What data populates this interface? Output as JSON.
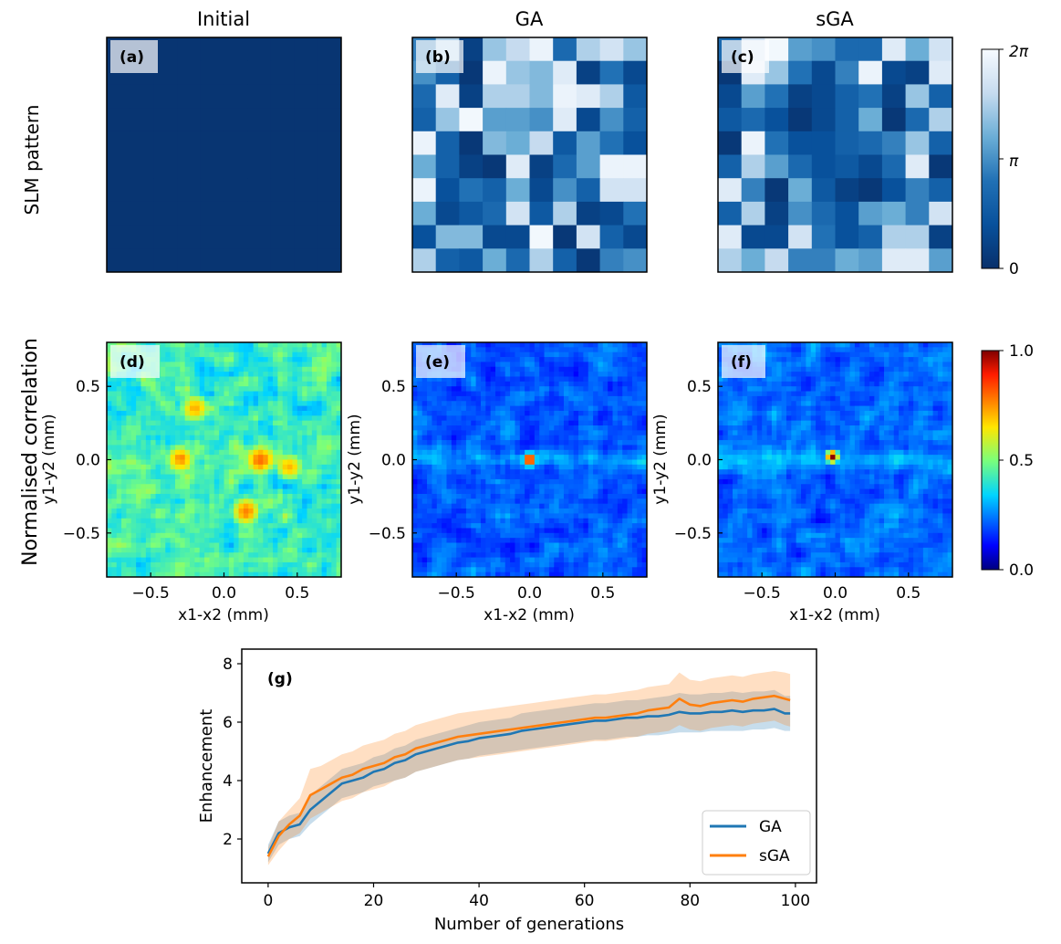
{
  "column_titles": [
    "Initial",
    "GA",
    "sGA"
  ],
  "row_labels": {
    "slm": "SLM pattern",
    "correlation": "Normalised correlation"
  },
  "panel_labels": {
    "a": "(a)",
    "b": "(b)",
    "c": "(c)",
    "d": "(d)",
    "e": "(e)",
    "f": "(f)",
    "g": "(g)"
  },
  "phase_colorbar": {
    "cmap": "Blues_r",
    "ticks": [
      "0",
      "π",
      "2π"
    ],
    "values": [
      0,
      3.1416,
      6.2832
    ]
  },
  "correlation_colorbar": {
    "cmap": "jet",
    "ticks": [
      "0.0",
      "0.5",
      "1.0"
    ],
    "values": [
      0.0,
      0.5,
      1.0
    ]
  },
  "chart_data": [
    {
      "panel": "a",
      "type": "heatmap",
      "title": "Initial",
      "grid_size": [
        10,
        10
      ],
      "value_units": "phase (fraction of 2π)",
      "values": [
        [
          0.03,
          0.03,
          0.03,
          0.03,
          0.03,
          0.03,
          0.03,
          0.03,
          0.03,
          0.03
        ],
        [
          0.03,
          0.03,
          0.03,
          0.03,
          0.03,
          0.03,
          0.03,
          0.03,
          0.03,
          0.03
        ],
        [
          0.03,
          0.03,
          0.03,
          0.03,
          0.03,
          0.03,
          0.03,
          0.03,
          0.03,
          0.03
        ],
        [
          0.03,
          0.03,
          0.03,
          0.03,
          0.03,
          0.03,
          0.03,
          0.03,
          0.03,
          0.03
        ],
        [
          0.03,
          0.03,
          0.03,
          0.03,
          0.03,
          0.03,
          0.03,
          0.03,
          0.03,
          0.03
        ],
        [
          0.03,
          0.03,
          0.03,
          0.03,
          0.03,
          0.03,
          0.03,
          0.03,
          0.03,
          0.03
        ],
        [
          0.03,
          0.03,
          0.03,
          0.03,
          0.03,
          0.03,
          0.03,
          0.03,
          0.03,
          0.03
        ],
        [
          0.03,
          0.03,
          0.03,
          0.03,
          0.03,
          0.03,
          0.03,
          0.03,
          0.03,
          0.03
        ],
        [
          0.03,
          0.03,
          0.03,
          0.03,
          0.03,
          0.03,
          0.03,
          0.03,
          0.03,
          0.03
        ],
        [
          0.03,
          0.03,
          0.03,
          0.03,
          0.03,
          0.03,
          0.03,
          0.03,
          0.03,
          0.03
        ]
      ]
    },
    {
      "panel": "b",
      "type": "heatmap",
      "title": "GA",
      "grid_size": [
        10,
        10
      ],
      "value_units": "phase (fraction of 2π)",
      "values": [
        [
          0.45,
          0.75,
          0.1,
          0.7,
          0.8,
          0.95,
          0.35,
          0.75,
          0.85,
          0.7
        ],
        [
          0.5,
          0.3,
          0.05,
          0.95,
          0.7,
          0.65,
          0.9,
          0.1,
          0.4,
          0.15
        ],
        [
          0.35,
          0.9,
          0.1,
          0.75,
          0.75,
          0.65,
          0.95,
          0.9,
          0.75,
          0.25
        ],
        [
          0.3,
          0.7,
          0.98,
          0.55,
          0.55,
          0.5,
          0.9,
          0.15,
          0.5,
          0.3
        ],
        [
          0.95,
          0.3,
          0.05,
          0.65,
          0.6,
          0.8,
          0.25,
          0.55,
          0.4,
          0.2
        ],
        [
          0.6,
          0.3,
          0.1,
          0.05,
          0.9,
          0.1,
          0.35,
          0.55,
          0.95,
          0.95
        ],
        [
          0.95,
          0.2,
          0.4,
          0.3,
          0.6,
          0.15,
          0.5,
          0.3,
          0.85,
          0.85
        ],
        [
          0.6,
          0.15,
          0.25,
          0.35,
          0.85,
          0.25,
          0.75,
          0.1,
          0.15,
          0.4
        ],
        [
          0.2,
          0.65,
          0.65,
          0.15,
          0.15,
          0.98,
          0.05,
          0.85,
          0.3,
          0.15
        ],
        [
          0.75,
          0.3,
          0.25,
          0.6,
          0.35,
          0.75,
          0.3,
          0.05,
          0.45,
          0.5
        ]
      ]
    },
    {
      "panel": "c",
      "type": "heatmap",
      "title": "sGA",
      "grid_size": [
        10,
        10
      ],
      "value_units": "phase (fraction of 2π)",
      "values": [
        [
          0.35,
          0.85,
          0.98,
          0.55,
          0.5,
          0.35,
          0.35,
          0.9,
          0.6,
          0.85
        ],
        [
          0.05,
          0.9,
          0.7,
          0.4,
          0.15,
          0.45,
          0.95,
          0.15,
          0.1,
          0.9
        ],
        [
          0.15,
          0.55,
          0.4,
          0.1,
          0.15,
          0.3,
          0.4,
          0.1,
          0.7,
          0.3
        ],
        [
          0.25,
          0.35,
          0.2,
          0.05,
          0.15,
          0.3,
          0.6,
          0.05,
          0.35,
          0.75
        ],
        [
          0.05,
          0.95,
          0.4,
          0.2,
          0.2,
          0.3,
          0.35,
          0.45,
          0.7,
          0.3
        ],
        [
          0.3,
          0.75,
          0.55,
          0.35,
          0.2,
          0.25,
          0.15,
          0.35,
          0.9,
          0.05
        ],
        [
          0.9,
          0.45,
          0.05,
          0.6,
          0.25,
          0.1,
          0.05,
          0.2,
          0.45,
          0.3
        ],
        [
          0.3,
          0.75,
          0.1,
          0.5,
          0.35,
          0.2,
          0.55,
          0.6,
          0.45,
          0.85
        ],
        [
          0.9,
          0.15,
          0.15,
          0.85,
          0.4,
          0.2,
          0.3,
          0.75,
          0.75,
          0.1
        ],
        [
          0.75,
          0.6,
          0.8,
          0.45,
          0.45,
          0.6,
          0.55,
          0.9,
          0.9,
          0.55
        ]
      ]
    },
    {
      "panel": "d",
      "type": "heatmap",
      "title": "",
      "xlabel": "x1-x2 (mm)",
      "ylabel": "y1-y2 (mm)",
      "xlim": [
        -0.8,
        0.8
      ],
      "ylim": [
        -0.8,
        0.8
      ],
      "xticks": [
        -0.5,
        0.0,
        0.5
      ],
      "yticks": [
        -0.5,
        0.0,
        0.5
      ],
      "xtick_labels": [
        "−0.5",
        "0.0",
        "0.5"
      ],
      "ytick_labels": [
        "−0.5",
        "0.0",
        "0.5"
      ],
      "background_level": 0.42,
      "noise_amplitude": 0.14,
      "peaks": [
        {
          "x": -0.2,
          "y": 0.35,
          "value": 0.72
        },
        {
          "x": -0.3,
          "y": 0.0,
          "value": 0.74
        },
        {
          "x": 0.25,
          "y": 0.0,
          "value": 0.8
        },
        {
          "x": 0.15,
          "y": -0.35,
          "value": 0.76
        },
        {
          "x": 0.45,
          "y": -0.05,
          "value": 0.7
        }
      ]
    },
    {
      "panel": "e",
      "type": "heatmap",
      "title": "",
      "xlabel": "x1-x2 (mm)",
      "ylabel": "y1-y2 (mm)",
      "xlim": [
        -0.8,
        0.8
      ],
      "ylim": [
        -0.8,
        0.8
      ],
      "xticks": [
        -0.5,
        0.0,
        0.5
      ],
      "yticks": [
        -0.5,
        0.0,
        0.5
      ],
      "xtick_labels": [
        "−0.5",
        "0.0",
        "0.5"
      ],
      "ytick_labels": [
        "−0.5",
        "0.0",
        "0.5"
      ],
      "background_level": 0.2,
      "noise_amplitude": 0.1,
      "peaks": [
        {
          "x": 0.0,
          "y": 0.0,
          "value": 1.0
        }
      ]
    },
    {
      "panel": "f",
      "type": "heatmap",
      "title": "",
      "xlabel": "x1-x2 (mm)",
      "ylabel": "y1-y2 (mm)",
      "xlim": [
        -0.8,
        0.8
      ],
      "ylim": [
        -0.8,
        0.8
      ],
      "xticks": [
        -0.5,
        0.0,
        0.5
      ],
      "yticks": [
        -0.5,
        0.0,
        0.5
      ],
      "xtick_labels": [
        "−0.5",
        "0.0",
        "0.5"
      ],
      "ytick_labels": [
        "−0.5",
        "0.0",
        "0.5"
      ],
      "background_level": 0.22,
      "noise_amplitude": 0.1,
      "peaks": [
        {
          "x": -0.02,
          "y": 0.02,
          "value": 1.0
        }
      ]
    },
    {
      "panel": "g",
      "type": "line",
      "xlabel": "Number of generations",
      "ylabel": "Enhancement",
      "xlim": [
        -5,
        104
      ],
      "ylim": [
        0.5,
        8.5
      ],
      "xticks": [
        0,
        20,
        40,
        60,
        80,
        100
      ],
      "yticks": [
        2,
        4,
        6,
        8
      ],
      "legend_position": "bottom-right",
      "x": [
        0,
        2,
        4,
        6,
        8,
        10,
        12,
        14,
        16,
        18,
        20,
        22,
        24,
        26,
        28,
        30,
        32,
        34,
        36,
        38,
        40,
        42,
        44,
        46,
        48,
        50,
        52,
        54,
        56,
        58,
        60,
        62,
        64,
        66,
        68,
        70,
        72,
        74,
        76,
        78,
        80,
        82,
        84,
        86,
        88,
        90,
        92,
        94,
        96,
        98,
        99
      ],
      "series": [
        {
          "name": "GA",
          "color": "#1f77b4",
          "values": [
            1.5,
            2.2,
            2.4,
            2.5,
            3.0,
            3.3,
            3.6,
            3.9,
            4.0,
            4.1,
            4.3,
            4.4,
            4.6,
            4.7,
            4.9,
            5.0,
            5.1,
            5.2,
            5.3,
            5.35,
            5.45,
            5.5,
            5.55,
            5.6,
            5.7,
            5.75,
            5.8,
            5.85,
            5.9,
            5.95,
            6.0,
            6.05,
            6.05,
            6.1,
            6.15,
            6.15,
            6.2,
            6.2,
            6.25,
            6.35,
            6.3,
            6.3,
            6.35,
            6.35,
            6.4,
            6.35,
            6.4,
            6.4,
            6.45,
            6.3,
            6.3
          ],
          "lower": [
            1.2,
            1.8,
            2.0,
            2.1,
            2.5,
            2.8,
            3.1,
            3.4,
            3.5,
            3.6,
            3.8,
            3.9,
            4.0,
            4.1,
            4.3,
            4.4,
            4.5,
            4.6,
            4.7,
            4.75,
            4.85,
            4.9,
            4.95,
            5.0,
            5.05,
            5.1,
            5.15,
            5.2,
            5.25,
            5.3,
            5.35,
            5.4,
            5.4,
            5.45,
            5.5,
            5.5,
            5.55,
            5.55,
            5.6,
            5.65,
            5.65,
            5.65,
            5.7,
            5.7,
            5.7,
            5.7,
            5.75,
            5.75,
            5.8,
            5.7,
            5.7
          ],
          "upper": [
            1.8,
            2.6,
            2.8,
            2.9,
            3.5,
            3.8,
            4.1,
            4.4,
            4.5,
            4.6,
            4.8,
            4.9,
            5.1,
            5.2,
            5.4,
            5.5,
            5.6,
            5.7,
            5.8,
            5.9,
            6.0,
            6.05,
            6.1,
            6.15,
            6.3,
            6.35,
            6.4,
            6.45,
            6.5,
            6.55,
            6.6,
            6.65,
            6.65,
            6.7,
            6.75,
            6.75,
            6.8,
            6.85,
            6.9,
            7.0,
            6.95,
            6.95,
            7.0,
            7.0,
            7.05,
            7.0,
            7.05,
            7.05,
            7.1,
            6.9,
            6.9
          ]
        },
        {
          "name": "sGA",
          "color": "#ff7f0e",
          "values": [
            1.4,
            2.1,
            2.5,
            2.8,
            3.5,
            3.7,
            3.9,
            4.1,
            4.2,
            4.4,
            4.5,
            4.6,
            4.8,
            4.9,
            5.1,
            5.2,
            5.3,
            5.4,
            5.5,
            5.55,
            5.6,
            5.65,
            5.7,
            5.75,
            5.8,
            5.85,
            5.9,
            5.95,
            6.0,
            6.05,
            6.1,
            6.15,
            6.15,
            6.2,
            6.25,
            6.3,
            6.4,
            6.45,
            6.5,
            6.8,
            6.6,
            6.55,
            6.65,
            6.7,
            6.75,
            6.7,
            6.8,
            6.85,
            6.9,
            6.8,
            6.75
          ],
          "lower": [
            1.1,
            1.6,
            2.0,
            2.2,
            2.7,
            2.9,
            3.1,
            3.3,
            3.4,
            3.6,
            3.7,
            3.8,
            4.0,
            4.1,
            4.3,
            4.4,
            4.5,
            4.6,
            4.7,
            4.75,
            4.8,
            4.85,
            4.9,
            4.95,
            5.0,
            5.05,
            5.1,
            5.15,
            5.2,
            5.25,
            5.3,
            5.35,
            5.35,
            5.4,
            5.45,
            5.5,
            5.6,
            5.65,
            5.7,
            5.9,
            5.75,
            5.7,
            5.8,
            5.85,
            5.9,
            5.85,
            5.95,
            6.0,
            6.05,
            5.9,
            5.85
          ],
          "upper": [
            1.7,
            2.6,
            3.0,
            3.4,
            4.4,
            4.5,
            4.7,
            4.9,
            5.0,
            5.2,
            5.3,
            5.4,
            5.6,
            5.7,
            5.9,
            6.0,
            6.1,
            6.2,
            6.3,
            6.35,
            6.4,
            6.45,
            6.5,
            6.55,
            6.6,
            6.65,
            6.7,
            6.75,
            6.8,
            6.85,
            6.9,
            6.95,
            6.95,
            7.0,
            7.05,
            7.1,
            7.2,
            7.25,
            7.3,
            7.7,
            7.45,
            7.4,
            7.5,
            7.55,
            7.6,
            7.55,
            7.65,
            7.7,
            7.75,
            7.7,
            7.65
          ]
        }
      ]
    }
  ]
}
